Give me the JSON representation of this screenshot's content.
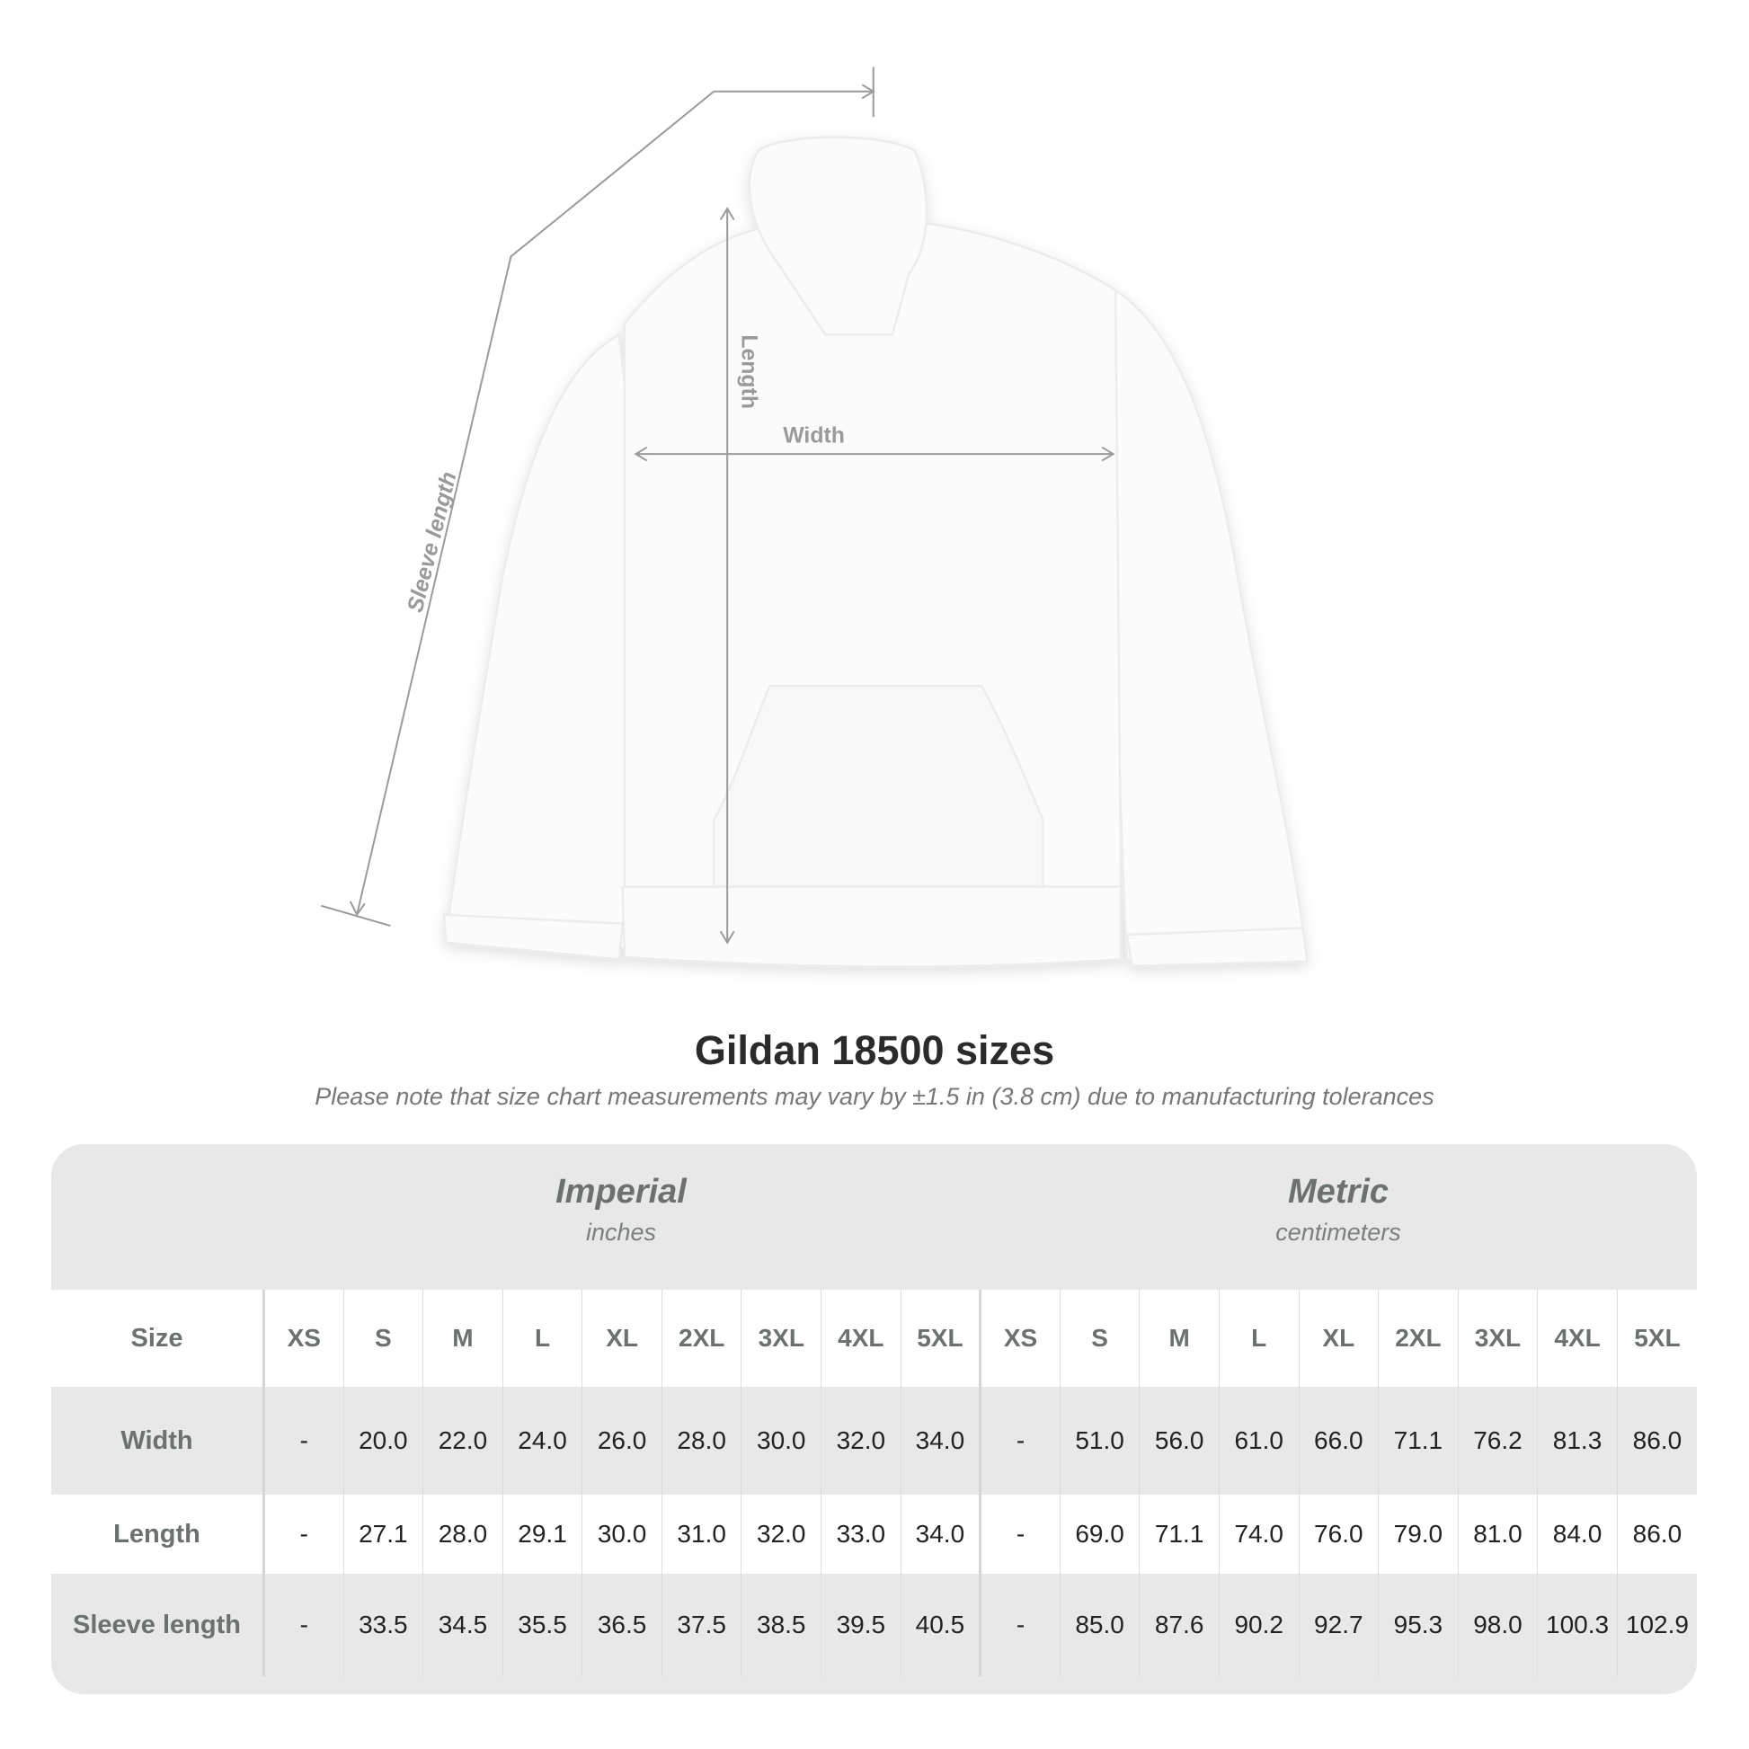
{
  "annotations": {
    "sleeve_length": "Sleeve length",
    "length": "Length",
    "width": "Width"
  },
  "title": "Gildan 18500 sizes",
  "subtitle": "Please note that size chart measurements may vary by ±1.5 in (3.8 cm) due to manufacturing tolerances",
  "table": {
    "imperial": {
      "title": "Imperial",
      "unit": "inches"
    },
    "metric": {
      "title": "Metric",
      "unit": "centimeters"
    },
    "size_label": "Size",
    "sizes": [
      "XS",
      "S",
      "M",
      "L",
      "XL",
      "2XL",
      "3XL",
      "4XL",
      "5XL"
    ],
    "rows": [
      {
        "label": "Width",
        "imperial": [
          "-",
          "20.0",
          "22.0",
          "24.0",
          "26.0",
          "28.0",
          "30.0",
          "32.0",
          "34.0"
        ],
        "metric": [
          "-",
          "51.0",
          "56.0",
          "61.0",
          "66.0",
          "71.1",
          "76.2",
          "81.3",
          "86.0"
        ]
      },
      {
        "label": "Length",
        "imperial": [
          "-",
          "27.1",
          "28.0",
          "29.1",
          "30.0",
          "31.0",
          "32.0",
          "33.0",
          "34.0"
        ],
        "metric": [
          "-",
          "69.0",
          "71.1",
          "74.0",
          "76.0",
          "79.0",
          "81.0",
          "84.0",
          "86.0"
        ]
      },
      {
        "label": "Sleeve length",
        "imperial": [
          "-",
          "33.5",
          "34.5",
          "35.5",
          "36.5",
          "37.5",
          "38.5",
          "39.5",
          "40.5"
        ],
        "metric": [
          "-",
          "85.0",
          "87.6",
          "90.2",
          "92.7",
          "95.3",
          "98.0",
          "100.3",
          "102.9"
        ]
      }
    ]
  },
  "colors": {
    "header_bg": "#e8e8e8",
    "label_text": "#6b7070",
    "guide_line": "#9a9a9a"
  }
}
